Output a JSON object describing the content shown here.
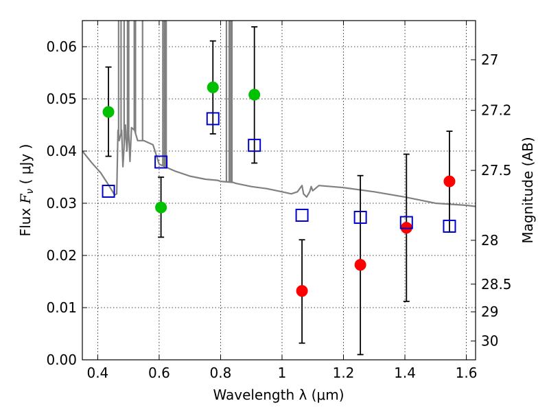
{
  "chart_data": {
    "type": "scatter",
    "x_axis": {
      "label": "Wavelength  λ (μm)",
      "range": [
        0.35,
        1.63
      ],
      "ticks": [
        0.4,
        0.6,
        0.8,
        1.0,
        1.2,
        1.4,
        1.6
      ],
      "tick_labels": [
        "0.4",
        "0.6",
        "0.8",
        "1",
        "1.2",
        "1.4",
        "1.6"
      ]
    },
    "y_axis": {
      "label_prefix": "Flux  ",
      "label_symbol": "F",
      "label_subscript": "ν",
      "label_suffix": "  ( μJy )",
      "range": [
        0.0,
        0.065
      ],
      "ticks": [
        0.0,
        0.01,
        0.02,
        0.03,
        0.04,
        0.05,
        0.06
      ],
      "tick_labels": [
        "0.00",
        "0.01",
        "0.02",
        "0.03",
        "0.04",
        "0.05",
        "0.06"
      ]
    },
    "y2_axis": {
      "label": "Magnitude (AB)",
      "tick_labels": [
        "27",
        "27.2",
        "27.5",
        "28",
        "28.5",
        "29",
        "30"
      ],
      "tick_flux": [
        0.0575,
        0.0478,
        0.0363,
        0.0229,
        0.0145,
        0.0092,
        0.0036
      ]
    },
    "grid": true,
    "series": [
      {
        "marker": "circle",
        "color": "#00c000",
        "points": [
          {
            "x": 0.435,
            "y": 0.0475,
            "err_low": 0.039,
            "err_high": 0.0561
          },
          {
            "x": 0.606,
            "y": 0.0292,
            "err_low": 0.0235,
            "err_high": 0.035
          },
          {
            "x": 0.775,
            "y": 0.0522,
            "err_low": 0.0433,
            "err_high": 0.0611
          },
          {
            "x": 0.91,
            "y": 0.0508,
            "err_low": 0.0377,
            "err_high": 0.0638
          }
        ]
      },
      {
        "marker": "circle",
        "color": "#ff0000",
        "points": [
          {
            "x": 1.065,
            "y": 0.0132,
            "err_low": 0.0032,
            "err_high": 0.023
          },
          {
            "x": 1.255,
            "y": 0.0182,
            "err_low": 0.001,
            "err_high": 0.0353
          },
          {
            "x": 1.405,
            "y": 0.0253,
            "err_low": 0.0112,
            "err_high": 0.0394
          },
          {
            "x": 1.545,
            "y": 0.0342,
            "err_low": 0.0245,
            "err_high": 0.0438
          }
        ]
      },
      {
        "marker": "open-square",
        "color": "#0000cc",
        "points": [
          {
            "x": 0.435,
            "y": 0.0323
          },
          {
            "x": 0.606,
            "y": 0.0379
          },
          {
            "x": 0.775,
            "y": 0.0462
          },
          {
            "x": 0.91,
            "y": 0.0411
          },
          {
            "x": 1.065,
            "y": 0.0277
          },
          {
            "x": 1.255,
            "y": 0.0273
          },
          {
            "x": 1.405,
            "y": 0.0263
          },
          {
            "x": 1.545,
            "y": 0.0256
          }
        ]
      }
    ],
    "spectrum": {
      "color": "#808080",
      "x": [
        0.35,
        0.38,
        0.41,
        0.43,
        0.455,
        0.462,
        0.466,
        0.47,
        0.478,
        0.482,
        0.49,
        0.495,
        0.5,
        0.505,
        0.51,
        0.52,
        0.53,
        0.55,
        0.58,
        0.6,
        0.65,
        0.7,
        0.75,
        0.79,
        0.8,
        0.84,
        0.85,
        0.9,
        0.95,
        1.0,
        1.03,
        1.05,
        1.065,
        1.07,
        1.08,
        1.09,
        1.095,
        1.1,
        1.12,
        1.2,
        1.3,
        1.4,
        1.45,
        1.5,
        1.55,
        1.6,
        1.63
      ],
      "y": [
        0.04,
        0.0378,
        0.0358,
        0.034,
        0.0316,
        0.0318,
        0.044,
        0.042,
        0.044,
        0.037,
        0.045,
        0.04,
        0.045,
        0.038,
        0.0445,
        0.044,
        0.042,
        0.042,
        0.0412,
        0.0375,
        0.0362,
        0.0352,
        0.0346,
        0.0344,
        0.0342,
        0.034,
        0.0338,
        0.0332,
        0.0328,
        0.0322,
        0.0318,
        0.0322,
        0.0334,
        0.0318,
        0.0312,
        0.0322,
        0.0332,
        0.0324,
        0.0334,
        0.033,
        0.0322,
        0.0312,
        0.0306,
        0.03,
        0.0298,
        0.0296,
        0.0294
      ],
      "emission_lines_um": [
        0.468,
        0.476,
        0.486,
        0.497,
        0.501,
        0.519,
        0.523,
        0.546,
        0.612,
        0.617,
        0.62,
        0.623,
        0.819,
        0.828,
        0.833,
        0.837
      ]
    }
  }
}
